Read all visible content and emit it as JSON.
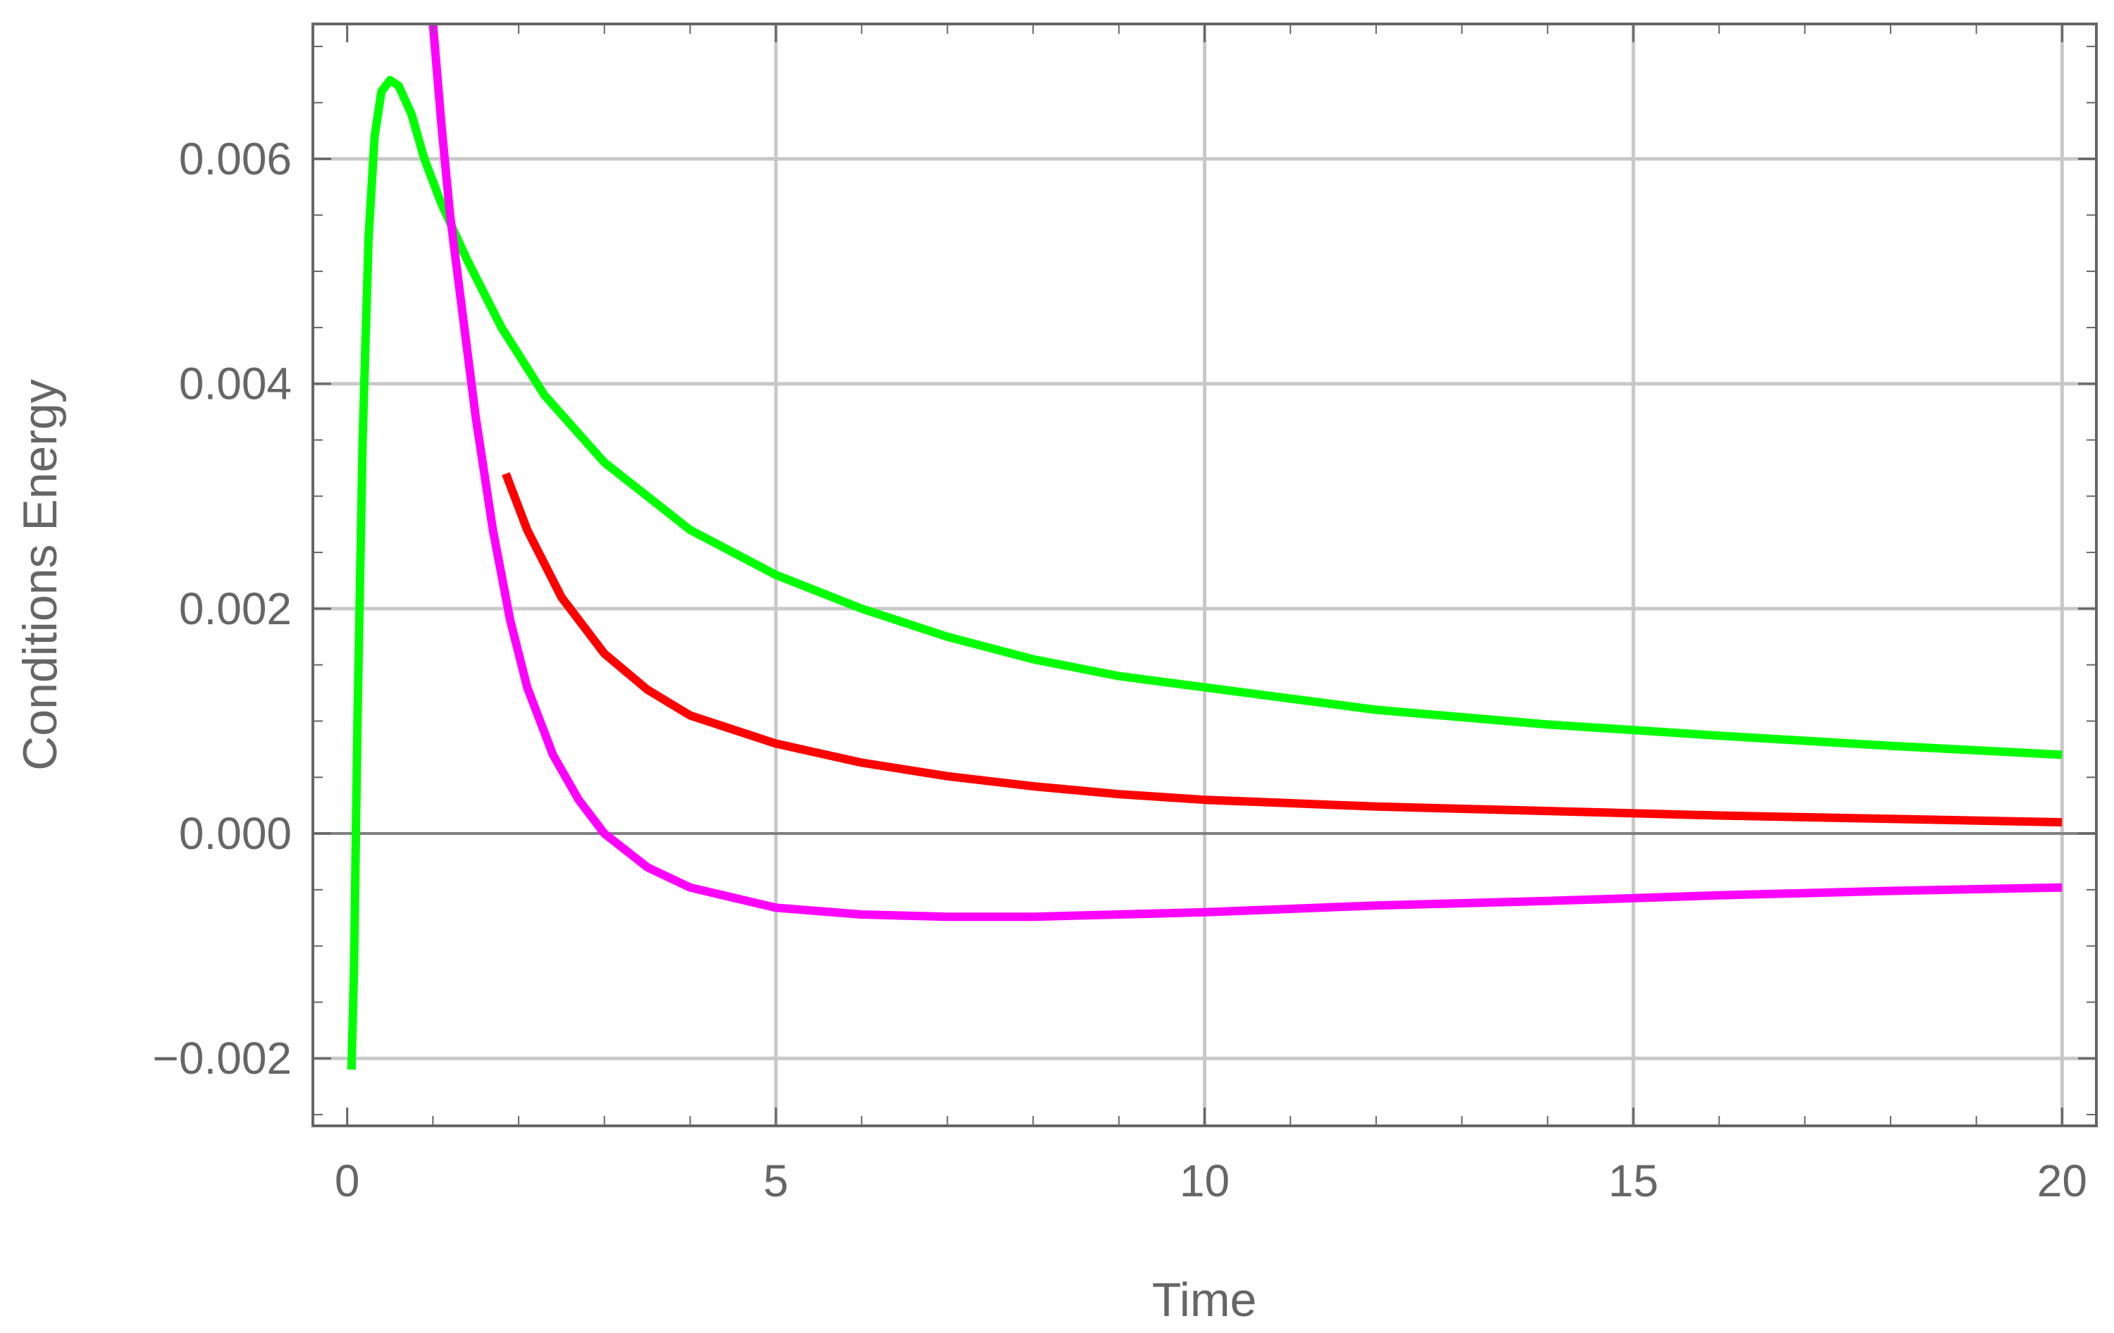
{
  "chart_data": {
    "type": "line",
    "title": "",
    "xlabel": "Time",
    "ylabel": "Conditions Energy",
    "xlim": [
      -0.4,
      20.4
    ],
    "ylim": [
      -0.0026,
      0.0072
    ],
    "grid": true,
    "x_ticks": [
      0,
      5,
      10,
      15,
      20
    ],
    "x_tick_labels": [
      "0",
      "5",
      "10",
      "15",
      "20"
    ],
    "y_ticks": [
      -0.002,
      0.0,
      0.002,
      0.004,
      0.006
    ],
    "y_tick_labels": [
      "−0.002",
      "0.000",
      "0.002",
      "0.004",
      "0.006"
    ],
    "series": [
      {
        "color": "#00ff00",
        "points": [
          [
            0.05,
            -0.0021
          ],
          [
            0.08,
            -0.0012
          ],
          [
            0.12,
            0.001
          ],
          [
            0.18,
            0.0035
          ],
          [
            0.25,
            0.0053
          ],
          [
            0.32,
            0.0062
          ],
          [
            0.4,
            0.0066
          ],
          [
            0.5,
            0.0067
          ],
          [
            0.6,
            0.00665
          ],
          [
            0.75,
            0.0064
          ],
          [
            0.9,
            0.006
          ],
          [
            1.1,
            0.0056
          ],
          [
            1.4,
            0.0051
          ],
          [
            1.8,
            0.0045
          ],
          [
            2.3,
            0.0039
          ],
          [
            3,
            0.0033
          ],
          [
            4,
            0.0027
          ],
          [
            5,
            0.0023
          ],
          [
            6,
            0.002
          ],
          [
            7,
            0.00175
          ],
          [
            8,
            0.00155
          ],
          [
            9,
            0.0014
          ],
          [
            10,
            0.0013
          ],
          [
            12,
            0.0011
          ],
          [
            14,
            0.00097
          ],
          [
            16,
            0.00087
          ],
          [
            18,
            0.00078
          ],
          [
            20,
            0.0007
          ]
        ]
      },
      {
        "color": "#ff0000",
        "points": [
          [
            1.85,
            0.0032
          ],
          [
            2.1,
            0.0027
          ],
          [
            2.5,
            0.0021
          ],
          [
            3,
            0.0016
          ],
          [
            3.5,
            0.00128
          ],
          [
            4,
            0.00105
          ],
          [
            5,
            0.0008
          ],
          [
            6,
            0.00063
          ],
          [
            7,
            0.00051
          ],
          [
            8,
            0.00042
          ],
          [
            9,
            0.00035
          ],
          [
            10,
            0.0003
          ],
          [
            12,
            0.00024
          ],
          [
            14,
            0.0002
          ],
          [
            16,
            0.00016
          ],
          [
            18,
            0.00013
          ],
          [
            20,
            0.0001
          ]
        ]
      },
      {
        "color": "#ff00ff",
        "points": [
          [
            1.0,
            0.0072
          ],
          [
            1.1,
            0.0063
          ],
          [
            1.2,
            0.0055
          ],
          [
            1.35,
            0.0046
          ],
          [
            1.5,
            0.0037
          ],
          [
            1.7,
            0.0027
          ],
          [
            1.9,
            0.0019
          ],
          [
            2.1,
            0.0013
          ],
          [
            2.4,
            0.0007
          ],
          [
            2.7,
            0.0003
          ],
          [
            3,
            0.0
          ],
          [
            3.5,
            -0.0003
          ],
          [
            4,
            -0.00048
          ],
          [
            5,
            -0.00066
          ],
          [
            6,
            -0.00072
          ],
          [
            7,
            -0.00074
          ],
          [
            8,
            -0.00074
          ],
          [
            10,
            -0.0007
          ],
          [
            12,
            -0.00064
          ],
          [
            14,
            -0.0006
          ],
          [
            16,
            -0.00055
          ],
          [
            18,
            -0.00051
          ],
          [
            20,
            -0.00048
          ]
        ]
      }
    ]
  }
}
